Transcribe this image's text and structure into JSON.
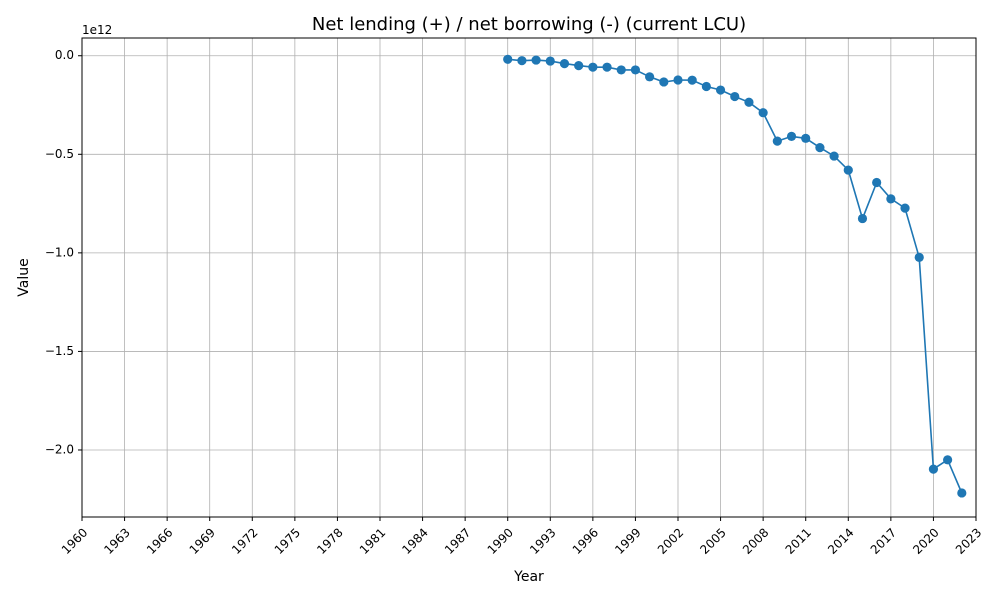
{
  "chart_data": {
    "type": "line",
    "title": "Net lending (+) / net borrowing (-) (current LCU)",
    "xlabel": "Year",
    "ylabel": "Value",
    "offset_label": "1e12",
    "xlim": [
      1960,
      2023
    ],
    "ylim": [
      -2.34,
      0.09
    ],
    "x_scale": 1,
    "y_scale": 1000000000000,
    "grid": true,
    "legend": "none",
    "series_color": "#1f77b4",
    "x_ticks": [
      1960,
      1963,
      1966,
      1969,
      1972,
      1975,
      1978,
      1981,
      1984,
      1987,
      1990,
      1993,
      1996,
      1999,
      2002,
      2005,
      2008,
      2011,
      2014,
      2017,
      2020,
      2023
    ],
    "x_tick_labels": [
      "1960",
      "1963",
      "1966",
      "1969",
      "1972",
      "1975",
      "1978",
      "1981",
      "1984",
      "1987",
      "1990",
      "1993",
      "1996",
      "1999",
      "2002",
      "2005",
      "2008",
      "2011",
      "2014",
      "2017",
      "2020",
      "2023"
    ],
    "y_ticks": [
      0.0,
      -0.5,
      -1.0,
      -1.5,
      -2.0
    ],
    "y_tick_labels": [
      "0.0",
      "−0.5",
      "−1.0",
      "−1.5",
      "−2.0"
    ],
    "x": [
      1990,
      1991,
      1992,
      1993,
      1994,
      1995,
      1996,
      1997,
      1998,
      1999,
      2000,
      2001,
      2002,
      2003,
      2004,
      2005,
      2006,
      2007,
      2008,
      2009,
      2010,
      2011,
      2012,
      2013,
      2014,
      2015,
      2016,
      2017,
      2018,
      2019,
      2020,
      2021,
      2022
    ],
    "series": [
      {
        "values": [
          -0.018,
          -0.025,
          -0.022,
          -0.027,
          -0.04,
          -0.05,
          -0.058,
          -0.058,
          -0.072,
          -0.072,
          -0.107,
          -0.133,
          -0.123,
          -0.124,
          -0.156,
          -0.174,
          -0.207,
          -0.236,
          -0.289,
          -0.433,
          -0.409,
          -0.419,
          -0.466,
          -0.509,
          -0.58,
          -0.826,
          -0.643,
          -0.726,
          -0.773,
          -1.023,
          -2.097,
          -2.05,
          -2.218
        ]
      }
    ]
  }
}
